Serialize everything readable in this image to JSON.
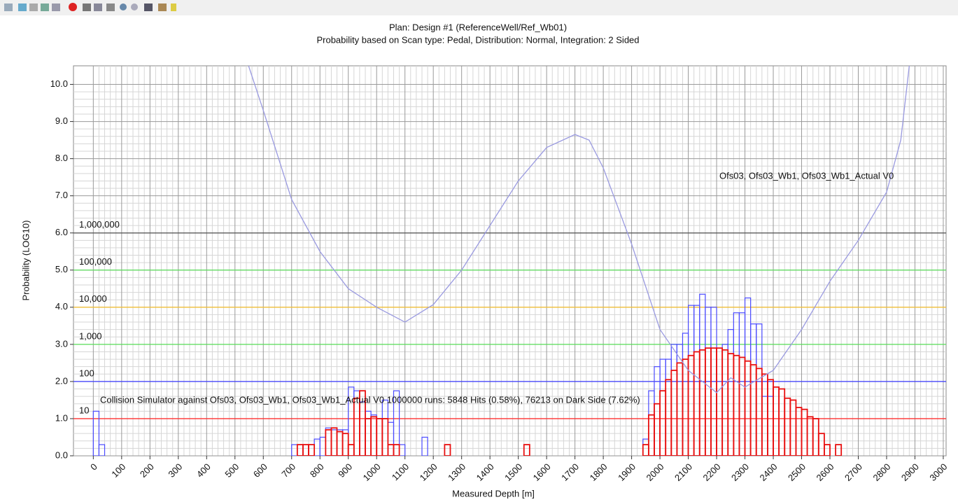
{
  "chart_data": {
    "type": "histogram",
    "title": "Plan: Design #1 (ReferenceWell/Ref_Wb01)",
    "subtitle": "Probability based on Scan type: Pedal, Distribution: Normal, Integration: 2 Sided",
    "x_label": "Measured Depth [m]",
    "y_label": "Probability (LOG10)",
    "xlim": [
      -70,
      3010
    ],
    "ylim": [
      0,
      10.5
    ],
    "xticks": [
      0,
      100,
      200,
      300,
      400,
      500,
      600,
      700,
      800,
      900,
      1000,
      1100,
      1200,
      1300,
      1400,
      1500,
      1600,
      1700,
      1800,
      1900,
      2000,
      2100,
      2200,
      2300,
      2400,
      2500,
      2600,
      2700,
      2800,
      2900,
      3000
    ],
    "yticks": [
      {
        "value": 0,
        "label": "0.0"
      },
      {
        "value": 1,
        "label": "1.0"
      },
      {
        "value": 2,
        "label": "2.0"
      },
      {
        "value": 3,
        "label": "3.0"
      },
      {
        "value": 4,
        "label": "4.0"
      },
      {
        "value": 5,
        "label": "5.0"
      },
      {
        "value": 6,
        "label": "6.0"
      },
      {
        "value": 7,
        "label": "7.0"
      },
      {
        "value": 8,
        "label": "8.0"
      },
      {
        "value": 9,
        "label": "9.0"
      },
      {
        "value": 10,
        "label": "10.0"
      }
    ],
    "grid": true,
    "reference_lines": [
      {
        "value": 1,
        "label": "10",
        "color": "#ff3030"
      },
      {
        "value": 2,
        "label": "100",
        "color": "#3a3aff"
      },
      {
        "value": 3,
        "label": "1,000",
        "color": "#5be05b"
      },
      {
        "value": 4,
        "label": "10,000",
        "color": "#f3c13a"
      },
      {
        "value": 5,
        "label": "100,000",
        "color": "#5be05b"
      },
      {
        "value": 6,
        "label": "1,000,000",
        "color": "#555555"
      }
    ],
    "annotations": [
      {
        "text": "Ofs03, Ofs03_Wb1, Ofs03_Wb1_Actual V0"
      },
      {
        "text": "Collision Simulator against Ofs03, Ofs03_Wb1, Ofs03_Wb1_Actual V0 1000000 runs: 5848 Hits (0.58%), 76213 on Dark Side (7.62%)"
      }
    ],
    "bins": [
      0,
      20,
      40,
      60,
      80,
      100,
      120,
      140,
      160,
      180,
      200,
      220,
      240,
      260,
      280,
      300,
      320,
      340,
      360,
      380,
      400,
      420,
      440,
      460,
      480,
      500,
      520,
      540,
      560,
      580,
      600,
      620,
      640,
      660,
      680,
      700,
      720,
      740,
      760,
      780,
      800,
      820,
      840,
      860,
      880,
      900,
      920,
      940,
      960,
      980,
      1000,
      1020,
      1040,
      1060,
      1080,
      1100,
      1120,
      1140,
      1160,
      1180,
      1200,
      1220,
      1240,
      1260,
      1280,
      1300,
      1320,
      1340,
      1360,
      1380,
      1400,
      1420,
      1440,
      1460,
      1480,
      1500,
      1520,
      1540,
      1560,
      1580,
      1600,
      1620,
      1640,
      1660,
      1680,
      1700,
      1720,
      1740,
      1760,
      1780,
      1800,
      1820,
      1840,
      1860,
      1880,
      1900,
      1920,
      1940,
      1960,
      1980,
      2000,
      2020,
      2040,
      2060,
      2080,
      2100,
      2120,
      2140,
      2160,
      2180,
      2200,
      2220,
      2240,
      2260,
      2280,
      2300,
      2320,
      2340,
      2360,
      2380,
      2400,
      2420,
      2440,
      2460,
      2480,
      2500,
      2520,
      2540,
      2560,
      2580,
      2600,
      2620,
      2640,
      2660
    ],
    "series": [
      {
        "color": "#4a4aff",
        "values": [
          1.2,
          0.3,
          0,
          0,
          0,
          0,
          0,
          0,
          0,
          0,
          0,
          0,
          0,
          0,
          0,
          0,
          0,
          0,
          0,
          0,
          0,
          0,
          0,
          0,
          0,
          0,
          0,
          0,
          0,
          0,
          0,
          0,
          0,
          0,
          0,
          0.3,
          0.3,
          0.3,
          0.3,
          0.45,
          0.5,
          0.75,
          0.7,
          0.7,
          0.7,
          1.85,
          1.75,
          1.45,
          1.2,
          1.1,
          1.0,
          1.5,
          0.9,
          1.75,
          0.3,
          0,
          0,
          0,
          0.5,
          0,
          0,
          0,
          0,
          0,
          0,
          0,
          0,
          0,
          0,
          0,
          0,
          0,
          0,
          0,
          0,
          0,
          0,
          0,
          0,
          0,
          0,
          0,
          0,
          0,
          0,
          0,
          0,
          0,
          0,
          0,
          0,
          0,
          0,
          0,
          0,
          0,
          0,
          0.45,
          1.75,
          2.4,
          2.6,
          2.6,
          3.0,
          3.0,
          3.3,
          4.05,
          4.05,
          4.35,
          4.0,
          4.0,
          2.9,
          3.0,
          3.4,
          3.85,
          3.85,
          4.25,
          3.55,
          3.55,
          1.6,
          1.6,
          0,
          0,
          0,
          0,
          0,
          0,
          0,
          0,
          0,
          0,
          0,
          0,
          0
        ]
      },
      {
        "color": "#e81010",
        "values": [
          0,
          0,
          0,
          0,
          0,
          0,
          0,
          0,
          0,
          0,
          0,
          0,
          0,
          0,
          0,
          0,
          0,
          0,
          0,
          0,
          0,
          0,
          0,
          0,
          0,
          0,
          0,
          0,
          0,
          0,
          0,
          0,
          0,
          0,
          0,
          0,
          0.3,
          0.3,
          0.3,
          0,
          0,
          0.7,
          0.75,
          0.65,
          0.6,
          0.3,
          1.55,
          1.75,
          1.0,
          1.05,
          1.0,
          1.0,
          0.3,
          0.3,
          0,
          0,
          0,
          0,
          0,
          0,
          0,
          0,
          0.3,
          0,
          0,
          0,
          0,
          0,
          0,
          0,
          0,
          0,
          0,
          0,
          0,
          0,
          0.3,
          0,
          0,
          0,
          0,
          0,
          0,
          0,
          0,
          0,
          0,
          0,
          0,
          0,
          0,
          0,
          0,
          0,
          0,
          0,
          0,
          0.3,
          1.1,
          1.4,
          1.75,
          2.05,
          2.3,
          2.5,
          2.6,
          2.7,
          2.8,
          2.85,
          2.9,
          2.9,
          2.9,
          2.85,
          2.75,
          2.7,
          2.65,
          2.55,
          2.45,
          2.35,
          2.2,
          2.05,
          1.85,
          1.8,
          1.55,
          1.5,
          1.3,
          1.25,
          1.05,
          1.0,
          0.6,
          0.3,
          0,
          0.3,
          0
        ]
      }
    ],
    "curve": {
      "color": "#9a9ae0",
      "x": [
        548,
        600,
        700,
        800,
        900,
        1000,
        1100,
        1200,
        1300,
        1400,
        1500,
        1600,
        1700,
        1750,
        1800,
        1900,
        2000,
        2100,
        2200,
        2250,
        2300,
        2400,
        2500,
        2600,
        2700,
        2800,
        2850,
        2880
      ],
      "values": [
        10.5,
        9.3,
        6.9,
        5.5,
        4.5,
        4.0,
        3.6,
        4.07,
        5.0,
        6.2,
        7.4,
        8.3,
        8.65,
        8.5,
        7.75,
        5.7,
        3.4,
        2.3,
        1.7,
        2.1,
        1.85,
        2.3,
        3.4,
        4.7,
        5.8,
        7.1,
        8.5,
        10.5
      ]
    }
  }
}
